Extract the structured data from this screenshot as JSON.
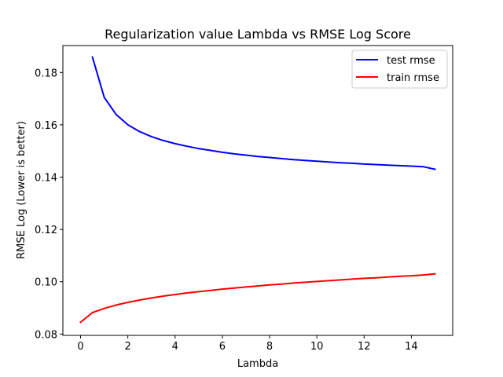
{
  "chart_data": {
    "type": "line",
    "title": "Regularization value Lambda vs RMSE Log Score",
    "xlabel": "Lambda",
    "ylabel": "RMSE Log (Lower is better)",
    "xlim": [
      -0.75,
      15.75
    ],
    "ylim": [
      0.0795,
      0.1903
    ],
    "xticks": [
      0,
      2,
      4,
      6,
      8,
      10,
      12,
      14
    ],
    "yticks": [
      0.08,
      0.1,
      0.12,
      0.14,
      0.16,
      0.18
    ],
    "ytick_labels": [
      "0.08",
      "0.10",
      "0.12",
      "0.14",
      "0.16",
      "0.18"
    ],
    "grid": false,
    "legend_position": "top-right",
    "series": [
      {
        "name": "test rmse",
        "color": "#0000ff",
        "x": [
          0.5,
          1.0,
          1.5,
          2.0,
          2.5,
          3.0,
          3.5,
          4.0,
          4.5,
          5.0,
          5.5,
          6.0,
          6.5,
          7.0,
          7.5,
          8.0,
          8.5,
          9.0,
          9.5,
          10.0,
          10.5,
          11.0,
          11.5,
          12.0,
          12.5,
          13.0,
          13.5,
          14.0,
          14.5,
          15.0
        ],
        "y": [
          0.1859,
          0.1705,
          0.164,
          0.16,
          0.1574,
          0.1555,
          0.154,
          0.1528,
          0.1518,
          0.1509,
          0.1502,
          0.1495,
          0.1489,
          0.1484,
          0.1479,
          0.1475,
          0.1471,
          0.1467,
          0.1464,
          0.1461,
          0.1458,
          0.1455,
          0.1453,
          0.145,
          0.1448,
          0.1446,
          0.1444,
          0.1442,
          0.144,
          0.143
        ]
      },
      {
        "name": "train rmse",
        "color": "#ff0000",
        "x": [
          0.0,
          0.5,
          1.0,
          1.5,
          2.0,
          2.5,
          3.0,
          3.5,
          4.0,
          4.5,
          5.0,
          5.5,
          6.0,
          6.5,
          7.0,
          7.5,
          8.0,
          8.5,
          9.0,
          9.5,
          10.0,
          10.5,
          11.0,
          11.5,
          12.0,
          12.5,
          13.0,
          13.5,
          14.0,
          14.5,
          15.0
        ],
        "y": [
          0.0845,
          0.0882,
          0.0898,
          0.0911,
          0.0921,
          0.093,
          0.0938,
          0.0945,
          0.0951,
          0.0957,
          0.0962,
          0.0967,
          0.0972,
          0.0976,
          0.098,
          0.0984,
          0.0988,
          0.0991,
          0.0995,
          0.0998,
          0.1001,
          0.1004,
          0.1007,
          0.101,
          0.1013,
          0.1015,
          0.1018,
          0.1021,
          0.1023,
          0.1026,
          0.103
        ]
      }
    ]
  }
}
